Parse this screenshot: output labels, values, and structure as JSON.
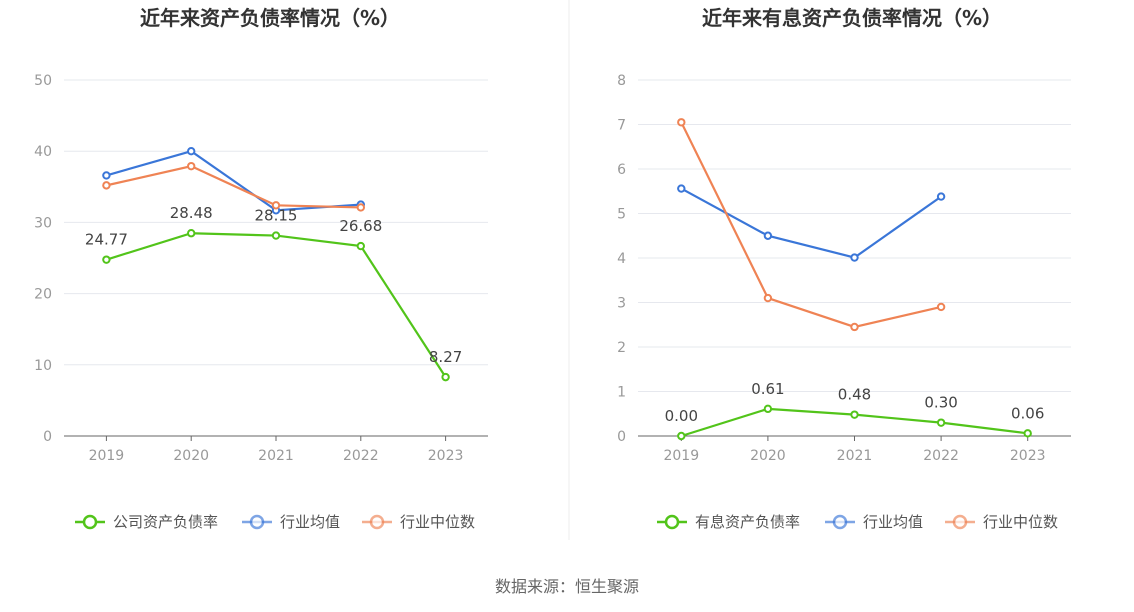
{
  "source": "数据来源：恒生聚源",
  "colors": {
    "company": "#52c41a",
    "industry_avg": "#3a76d8",
    "industry_median": "#ef8354"
  },
  "chart_data": [
    {
      "type": "line",
      "title": "近年来资产负债率情况（%）",
      "categories": [
        "2019",
        "2020",
        "2021",
        "2022",
        "2023"
      ],
      "y_ticks": [
        "0",
        "10",
        "20",
        "30",
        "40",
        "50"
      ],
      "ylim": [
        0,
        50
      ],
      "grid": true,
      "legend_position": "bottom",
      "series": [
        {
          "name": "公司资产负债率",
          "role": "company",
          "values": [
            24.77,
            28.48,
            28.15,
            26.68,
            8.27
          ],
          "labels": [
            "24.77",
            "28.48",
            "28.15",
            "26.68",
            "8.27"
          ]
        },
        {
          "name": "行业均值",
          "role": "industry_avg",
          "values": [
            36.6,
            40.0,
            31.7,
            32.5,
            null
          ]
        },
        {
          "name": "行业中位数",
          "role": "industry_median",
          "values": [
            35.2,
            37.9,
            32.4,
            32.1,
            null
          ]
        }
      ]
    },
    {
      "type": "line",
      "title": "近年来有息资产负债率情况（%）",
      "categories": [
        "2019",
        "2020",
        "2021",
        "2022",
        "2023"
      ],
      "y_ticks": [
        "0",
        "1",
        "2",
        "3",
        "4",
        "5",
        "6",
        "7",
        "8"
      ],
      "ylim": [
        0,
        8
      ],
      "grid": true,
      "legend_position": "bottom",
      "series": [
        {
          "name": "有息资产负债率",
          "role": "company",
          "values": [
            0.0,
            0.61,
            0.48,
            0.3,
            0.06
          ],
          "labels": [
            "0.00",
            "0.61",
            "0.48",
            "0.30",
            "0.06"
          ]
        },
        {
          "name": "行业均值",
          "role": "industry_avg",
          "values": [
            5.56,
            4.5,
            4.01,
            5.38,
            null
          ]
        },
        {
          "name": "行业中位数",
          "role": "industry_median",
          "values": [
            7.05,
            3.1,
            2.45,
            2.9,
            null
          ]
        }
      ]
    }
  ]
}
